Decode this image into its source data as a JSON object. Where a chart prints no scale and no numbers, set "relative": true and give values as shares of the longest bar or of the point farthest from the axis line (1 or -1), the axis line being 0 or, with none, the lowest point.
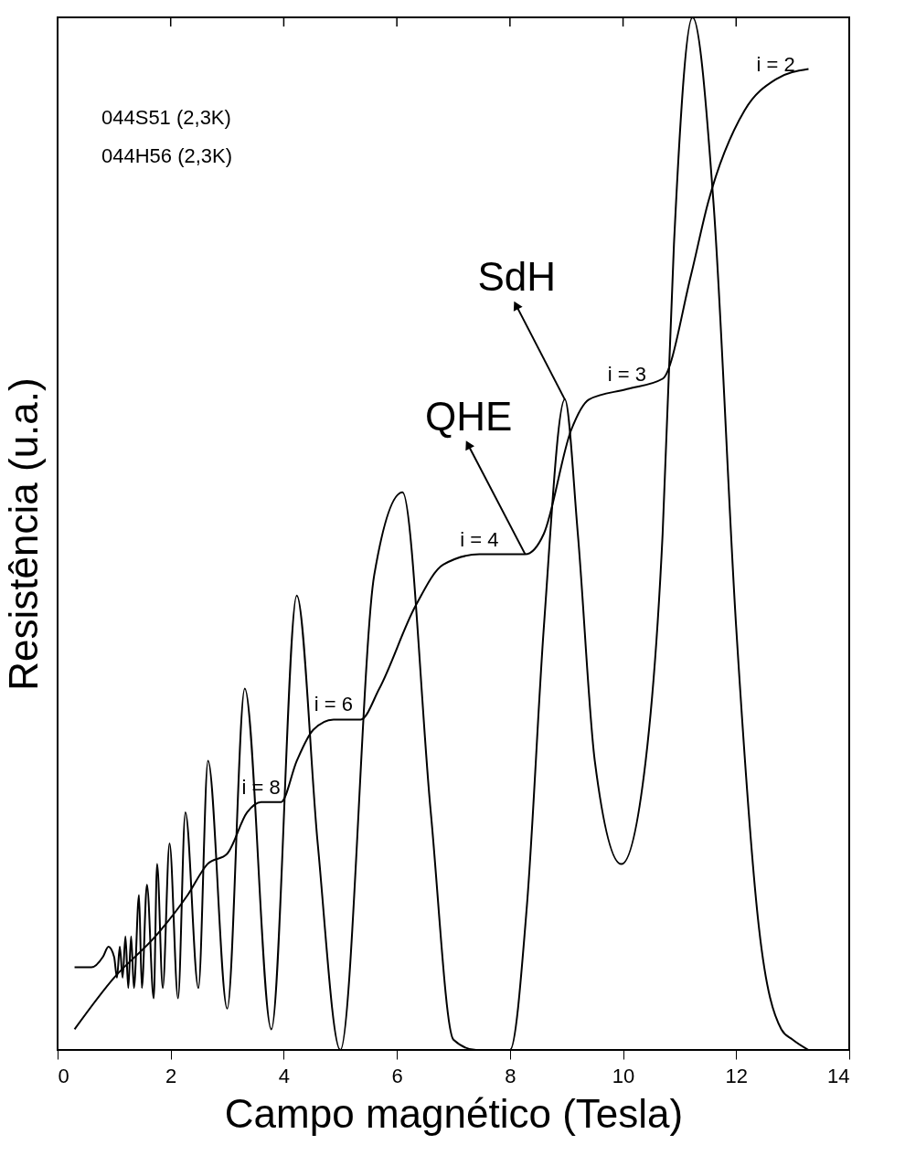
{
  "chart_data": {
    "type": "line",
    "relative": true,
    "xlabel": "Campo magnético (Tesla)",
    "ylabel": "Resistência (u.a.)",
    "xlim": [
      0,
      14
    ],
    "xticks": [
      0,
      2,
      4,
      6,
      8,
      10,
      12,
      14
    ],
    "grid": false,
    "marker": "none",
    "line_style": "solid",
    "series": [
      {
        "color": "#000000",
        "x": [
          0.3,
          0.6,
          0.8,
          0.9,
          1.0,
          1.05,
          1.1,
          1.15,
          1.2,
          1.25,
          1.3,
          1.35,
          1.44,
          1.49,
          1.58,
          1.7,
          1.76,
          1.86,
          1.98,
          2.13,
          2.26,
          2.49,
          2.66,
          3.0,
          3.31,
          3.78,
          4.23,
          4.6,
          5.0,
          5.6,
          6.1,
          6.6,
          7.0,
          7.4,
          8.0,
          8.3,
          8.6,
          8.97,
          9.2,
          9.5,
          9.97,
          10.4,
          10.7,
          10.9,
          11.23,
          11.6,
          12.0,
          12.4,
          12.8,
          13.0,
          13.28
        ],
        "values": [
          0.08,
          0.08,
          0.09,
          0.1,
          0.09,
          0.07,
          0.1,
          0.07,
          0.11,
          0.06,
          0.11,
          0.06,
          0.15,
          0.06,
          0.16,
          0.05,
          0.18,
          0.06,
          0.2,
          0.05,
          0.23,
          0.06,
          0.28,
          0.04,
          0.35,
          0.02,
          0.44,
          0.2,
          0.0,
          0.46,
          0.54,
          0.23,
          0.01,
          0.0,
          0.0,
          0.14,
          0.41,
          0.63,
          0.5,
          0.28,
          0.18,
          0.28,
          0.5,
          0.78,
          1.0,
          0.82,
          0.41,
          0.12,
          0.02,
          0.01,
          0.0
        ]
      },
      {
        "color": "#000000",
        "x": [
          0.3,
          1.0,
          1.73,
          2.3,
          2.65,
          3.0,
          3.35,
          3.6,
          3.95,
          4.23,
          4.52,
          4.88,
          5.36,
          5.69,
          6.33,
          6.82,
          7.46,
          8.27,
          8.6,
          9.08,
          9.4,
          10.07,
          10.7,
          11.2,
          11.5,
          12.15,
          12.7,
          13.28
        ],
        "values": [
          0.02,
          0.07,
          0.11,
          0.15,
          0.18,
          0.19,
          0.23,
          0.24,
          0.24,
          0.28,
          0.31,
          0.32,
          0.32,
          0.35,
          0.43,
          0.47,
          0.48,
          0.48,
          0.5,
          0.6,
          0.63,
          0.64,
          0.65,
          0.75,
          0.82,
          0.91,
          0.94,
          0.95
        ]
      }
    ],
    "annotations": [
      "044S51 (2,3K)",
      "044H56 (2,3K)",
      {
        "text": "i = 2",
        "x": 12.7,
        "y": 0.94
      },
      {
        "text": "i = 3",
        "x": 10.07,
        "y": 0.64
      },
      {
        "text": "i = 4",
        "x": 7.46,
        "y": 0.48
      },
      {
        "text": "i = 6",
        "x": 4.88,
        "y": 0.32
      },
      {
        "text": "i = 8",
        "x": 3.6,
        "y": 0.24
      },
      {
        "text": "SdH",
        "x": 8.97,
        "y": 0.63
      },
      {
        "text": "QHE",
        "x": 8.27,
        "y": 0.48
      }
    ]
  }
}
